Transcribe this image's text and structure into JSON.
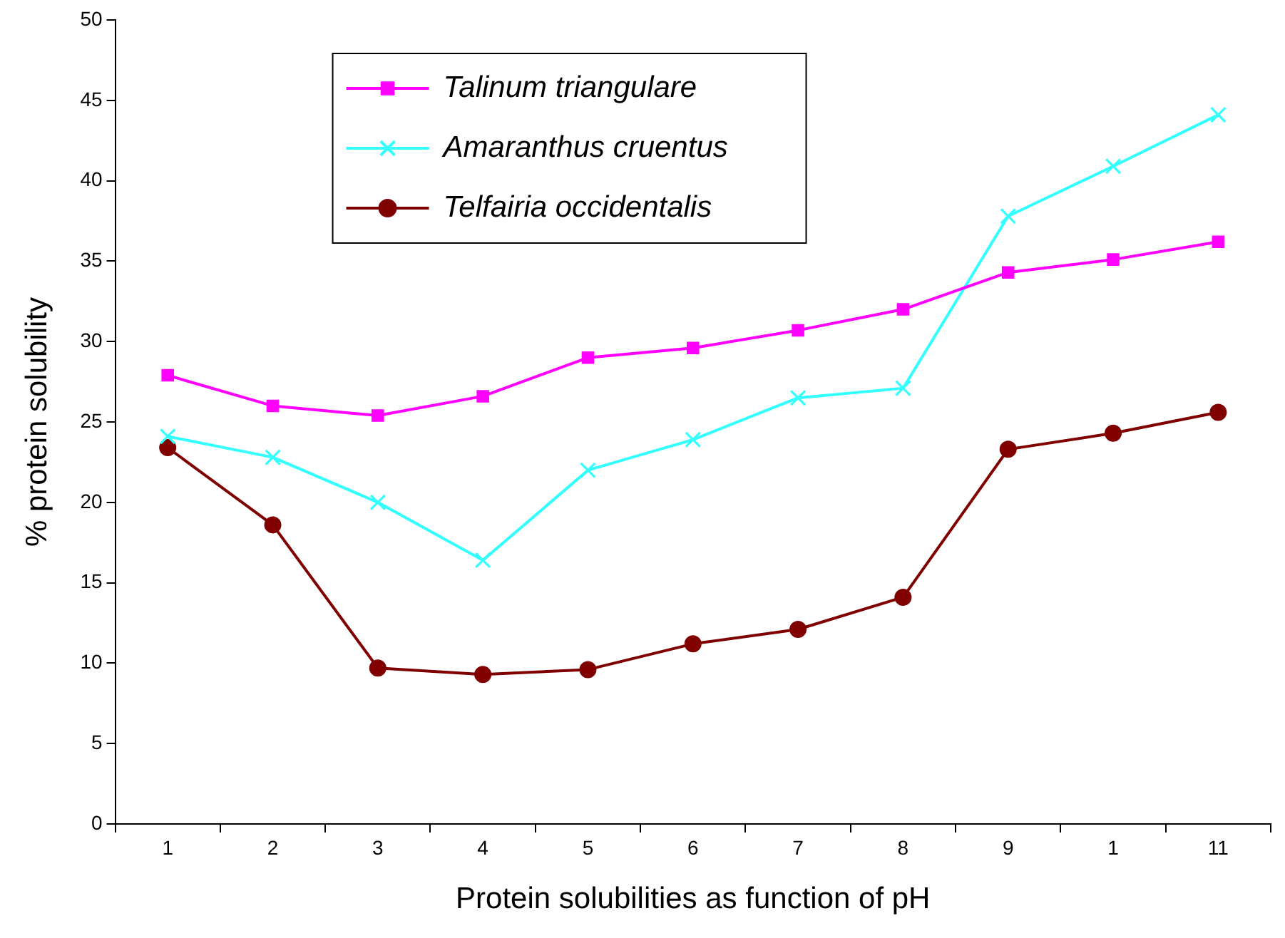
{
  "chart_data": {
    "type": "line",
    "xlabel": "Protein solubilities as function of pH",
    "ylabel": "% protein solubility",
    "categories": [
      "1",
      "2",
      "3",
      "4",
      "5",
      "6",
      "7",
      "8",
      "9",
      "1",
      "11"
    ],
    "series": [
      {
        "name": "Talinum triangulare",
        "color": "#ff00ff",
        "marker": "square",
        "values": [
          27.9,
          26.0,
          25.4,
          26.6,
          29.0,
          29.6,
          30.7,
          32.0,
          34.3,
          35.1,
          36.2
        ]
      },
      {
        "name": "Amaranthus cruentus",
        "color": "#33ffff",
        "marker": "cross",
        "values": [
          24.1,
          22.8,
          20.0,
          16.4,
          22.0,
          23.9,
          26.5,
          27.1,
          37.8,
          40.9,
          44.1
        ]
      },
      {
        "name": "Telfairia occidentalis",
        "color": "#800000",
        "marker": "circle",
        "values": [
          23.4,
          18.6,
          9.7,
          9.3,
          9.6,
          11.2,
          12.1,
          14.1,
          23.3,
          24.3,
          25.6
        ]
      }
    ],
    "ylim": [
      0,
      50
    ],
    "yticks": [
      0,
      5,
      10,
      15,
      20,
      25,
      30,
      35,
      40,
      45,
      50
    ],
    "grid": false,
    "legend": "top"
  }
}
